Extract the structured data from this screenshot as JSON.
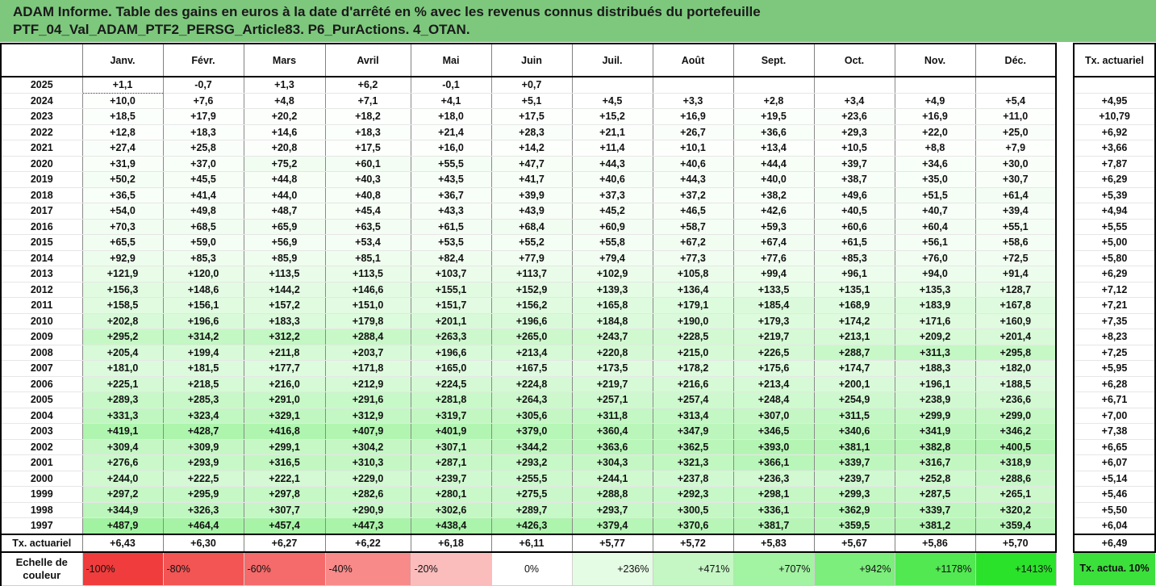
{
  "header": {
    "line1": "ADAM Informe. Table des gains en euros à la date d'arrêté en % avec les revenus connus distribués du portefeuille",
    "line2": "PTF_04_Val_ADAM_PTF2_PERSG_Article83. P6_PurActions. 4_OTAN."
  },
  "months": [
    "Janv.",
    "Févr.",
    "Mars",
    "Avril",
    "Mai",
    "Juin",
    "Juil.",
    "Août",
    "Sept.",
    "Oct.",
    "Nov.",
    "Déc."
  ],
  "side_header": "Tx. actuariel",
  "rows": [
    {
      "year": "2025",
      "values": [
        "+1,1",
        "-0,7",
        "+1,3",
        "+6,2",
        "-0,1",
        "+0,7",
        "",
        "",
        "",
        "",
        "",
        ""
      ],
      "tx": ""
    },
    {
      "year": "2024",
      "values": [
        "+10,0",
        "+7,6",
        "+4,8",
        "+7,1",
        "+4,1",
        "+5,1",
        "+4,5",
        "+3,3",
        "+2,8",
        "+3,4",
        "+4,9",
        "+5,4"
      ],
      "tx": "+4,95"
    },
    {
      "year": "2023",
      "values": [
        "+18,5",
        "+17,9",
        "+20,2",
        "+18,2",
        "+18,0",
        "+17,5",
        "+15,2",
        "+16,9",
        "+19,5",
        "+23,6",
        "+16,9",
        "+11,0"
      ],
      "tx": "+10,79"
    },
    {
      "year": "2022",
      "values": [
        "+12,8",
        "+18,3",
        "+14,6",
        "+18,3",
        "+21,4",
        "+28,3",
        "+21,1",
        "+26,7",
        "+36,6",
        "+29,3",
        "+22,0",
        "+25,0"
      ],
      "tx": "+6,92"
    },
    {
      "year": "2021",
      "values": [
        "+27,4",
        "+25,8",
        "+20,8",
        "+17,5",
        "+16,0",
        "+14,2",
        "+11,4",
        "+10,1",
        "+13,4",
        "+10,5",
        "+8,8",
        "+7,9"
      ],
      "tx": "+3,66"
    },
    {
      "year": "2020",
      "values": [
        "+31,9",
        "+37,0",
        "+75,2",
        "+60,1",
        "+55,5",
        "+47,7",
        "+44,3",
        "+40,6",
        "+44,4",
        "+39,7",
        "+34,6",
        "+30,0"
      ],
      "tx": "+7,87"
    },
    {
      "year": "2019",
      "values": [
        "+50,2",
        "+45,5",
        "+44,8",
        "+40,3",
        "+43,5",
        "+41,7",
        "+40,6",
        "+44,3",
        "+40,0",
        "+38,7",
        "+35,0",
        "+30,7"
      ],
      "tx": "+6,29"
    },
    {
      "year": "2018",
      "values": [
        "+36,5",
        "+41,4",
        "+44,0",
        "+40,8",
        "+36,7",
        "+39,9",
        "+37,3",
        "+37,2",
        "+38,2",
        "+49,6",
        "+51,5",
        "+61,4"
      ],
      "tx": "+5,39"
    },
    {
      "year": "2017",
      "values": [
        "+54,0",
        "+49,8",
        "+48,7",
        "+45,4",
        "+43,3",
        "+43,9",
        "+45,2",
        "+46,5",
        "+42,6",
        "+40,5",
        "+40,7",
        "+39,4"
      ],
      "tx": "+4,94"
    },
    {
      "year": "2016",
      "values": [
        "+70,3",
        "+68,5",
        "+65,9",
        "+63,5",
        "+61,5",
        "+68,4",
        "+60,9",
        "+58,7",
        "+59,3",
        "+60,6",
        "+60,4",
        "+55,1"
      ],
      "tx": "+5,55"
    },
    {
      "year": "2015",
      "values": [
        "+65,5",
        "+59,0",
        "+56,9",
        "+53,4",
        "+53,5",
        "+55,2",
        "+55,8",
        "+67,2",
        "+67,4",
        "+61,5",
        "+56,1",
        "+58,6"
      ],
      "tx": "+5,00"
    },
    {
      "year": "2014",
      "values": [
        "+92,9",
        "+85,3",
        "+85,9",
        "+85,1",
        "+82,4",
        "+77,9",
        "+79,4",
        "+77,3",
        "+77,6",
        "+85,3",
        "+76,0",
        "+72,5"
      ],
      "tx": "+5,80"
    },
    {
      "year": "2013",
      "values": [
        "+121,9",
        "+120,0",
        "+113,5",
        "+113,5",
        "+103,7",
        "+113,7",
        "+102,9",
        "+105,8",
        "+99,4",
        "+96,1",
        "+94,0",
        "+91,4"
      ],
      "tx": "+6,29"
    },
    {
      "year": "2012",
      "values": [
        "+156,3",
        "+148,6",
        "+144,2",
        "+146,6",
        "+155,1",
        "+152,9",
        "+139,3",
        "+136,4",
        "+133,5",
        "+135,1",
        "+135,3",
        "+128,7"
      ],
      "tx": "+7,12"
    },
    {
      "year": "2011",
      "values": [
        "+158,5",
        "+156,1",
        "+157,2",
        "+151,0",
        "+151,7",
        "+156,2",
        "+165,8",
        "+179,1",
        "+185,4",
        "+168,9",
        "+183,9",
        "+167,8"
      ],
      "tx": "+7,21"
    },
    {
      "year": "2010",
      "values": [
        "+202,8",
        "+196,6",
        "+183,3",
        "+179,8",
        "+201,1",
        "+196,6",
        "+184,8",
        "+190,0",
        "+179,3",
        "+174,2",
        "+171,6",
        "+160,9"
      ],
      "tx": "+7,35"
    },
    {
      "year": "2009",
      "values": [
        "+295,2",
        "+314,2",
        "+312,2",
        "+288,4",
        "+263,3",
        "+265,0",
        "+243,7",
        "+228,5",
        "+219,7",
        "+213,1",
        "+209,2",
        "+201,4"
      ],
      "tx": "+8,23"
    },
    {
      "year": "2008",
      "values": [
        "+205,4",
        "+199,4",
        "+211,8",
        "+203,7",
        "+196,6",
        "+213,4",
        "+220,8",
        "+215,0",
        "+226,5",
        "+288,7",
        "+311,3",
        "+295,8"
      ],
      "tx": "+7,25"
    },
    {
      "year": "2007",
      "values": [
        "+181,0",
        "+181,5",
        "+177,7",
        "+171,8",
        "+165,0",
        "+167,5",
        "+173,5",
        "+178,2",
        "+175,6",
        "+174,7",
        "+188,3",
        "+182,0"
      ],
      "tx": "+5,95"
    },
    {
      "year": "2006",
      "values": [
        "+225,1",
        "+218,5",
        "+216,0",
        "+212,9",
        "+224,5",
        "+224,8",
        "+219,7",
        "+216,6",
        "+213,4",
        "+200,1",
        "+196,1",
        "+188,5"
      ],
      "tx": "+6,28"
    },
    {
      "year": "2005",
      "values": [
        "+289,3",
        "+285,3",
        "+291,0",
        "+291,6",
        "+281,8",
        "+264,3",
        "+257,1",
        "+257,4",
        "+248,4",
        "+254,9",
        "+238,9",
        "+236,6"
      ],
      "tx": "+6,71"
    },
    {
      "year": "2004",
      "values": [
        "+331,3",
        "+323,4",
        "+329,1",
        "+312,9",
        "+319,7",
        "+305,6",
        "+311,8",
        "+313,4",
        "+307,0",
        "+311,5",
        "+299,9",
        "+299,0"
      ],
      "tx": "+7,00"
    },
    {
      "year": "2003",
      "values": [
        "+419,1",
        "+428,7",
        "+416,8",
        "+407,9",
        "+401,9",
        "+379,0",
        "+360,4",
        "+347,9",
        "+346,5",
        "+340,6",
        "+341,9",
        "+346,2"
      ],
      "tx": "+7,38"
    },
    {
      "year": "2002",
      "values": [
        "+309,4",
        "+309,9",
        "+299,1",
        "+304,2",
        "+307,1",
        "+344,2",
        "+363,6",
        "+362,5",
        "+393,0",
        "+381,1",
        "+382,8",
        "+400,5"
      ],
      "tx": "+6,65"
    },
    {
      "year": "2001",
      "values": [
        "+276,6",
        "+293,9",
        "+316,5",
        "+310,3",
        "+287,1",
        "+293,2",
        "+304,3",
        "+321,3",
        "+366,1",
        "+339,7",
        "+316,7",
        "+318,9"
      ],
      "tx": "+6,07"
    },
    {
      "year": "2000",
      "values": [
        "+244,0",
        "+222,5",
        "+222,1",
        "+229,0",
        "+239,7",
        "+255,5",
        "+244,1",
        "+237,8",
        "+236,3",
        "+239,7",
        "+252,8",
        "+288,6"
      ],
      "tx": "+5,14"
    },
    {
      "year": "1999",
      "values": [
        "+297,2",
        "+295,9",
        "+297,8",
        "+282,6",
        "+280,1",
        "+275,5",
        "+288,8",
        "+292,3",
        "+298,1",
        "+299,3",
        "+287,5",
        "+265,1"
      ],
      "tx": "+5,46"
    },
    {
      "year": "1998",
      "values": [
        "+344,9",
        "+326,3",
        "+307,7",
        "+290,9",
        "+302,6",
        "+289,7",
        "+293,7",
        "+300,5",
        "+336,1",
        "+362,9",
        "+339,7",
        "+320,2"
      ],
      "tx": "+5,50"
    },
    {
      "year": "1997",
      "values": [
        "+487,9",
        "+464,4",
        "+457,4",
        "+447,3",
        "+438,4",
        "+426,3",
        "+379,4",
        "+370,6",
        "+381,7",
        "+359,5",
        "+381,2",
        "+359,4"
      ],
      "tx": "+6,04"
    }
  ],
  "avg_row": {
    "label": "Tx. actuariel",
    "values": [
      "+6,43",
      "+6,30",
      "+6,27",
      "+6,22",
      "+6,18",
      "+6,11",
      "+5,77",
      "+5,72",
      "+5,83",
      "+5,67",
      "+5,86",
      "+5,70"
    ],
    "tx": "+6,49"
  },
  "scale": {
    "label": "Echelle de couleur",
    "items": [
      {
        "text": "-100%",
        "color": "#f03c3c"
      },
      {
        "text": "-80%",
        "color": "#f35454"
      },
      {
        "text": "-60%",
        "color": "#f56a6a"
      },
      {
        "text": "-40%",
        "color": "#f88a8a"
      },
      {
        "text": "-20%",
        "color": "#fbbcbc"
      },
      {
        "text": "0%",
        "color": "#ffffff"
      },
      {
        "text": "+236%",
        "color": "#e4fbe4"
      },
      {
        "text": "+471%",
        "color": "#c5f7c5"
      },
      {
        "text": "+707%",
        "color": "#a2f3a2"
      },
      {
        "text": "+942%",
        "color": "#7cee7c"
      },
      {
        "text": "+1178%",
        "color": "#52e852"
      },
      {
        "text": "+1413%",
        "color": "#2be22b"
      }
    ],
    "side_text": "Tx. actua. 10%",
    "side_color": "#3be03b"
  }
}
